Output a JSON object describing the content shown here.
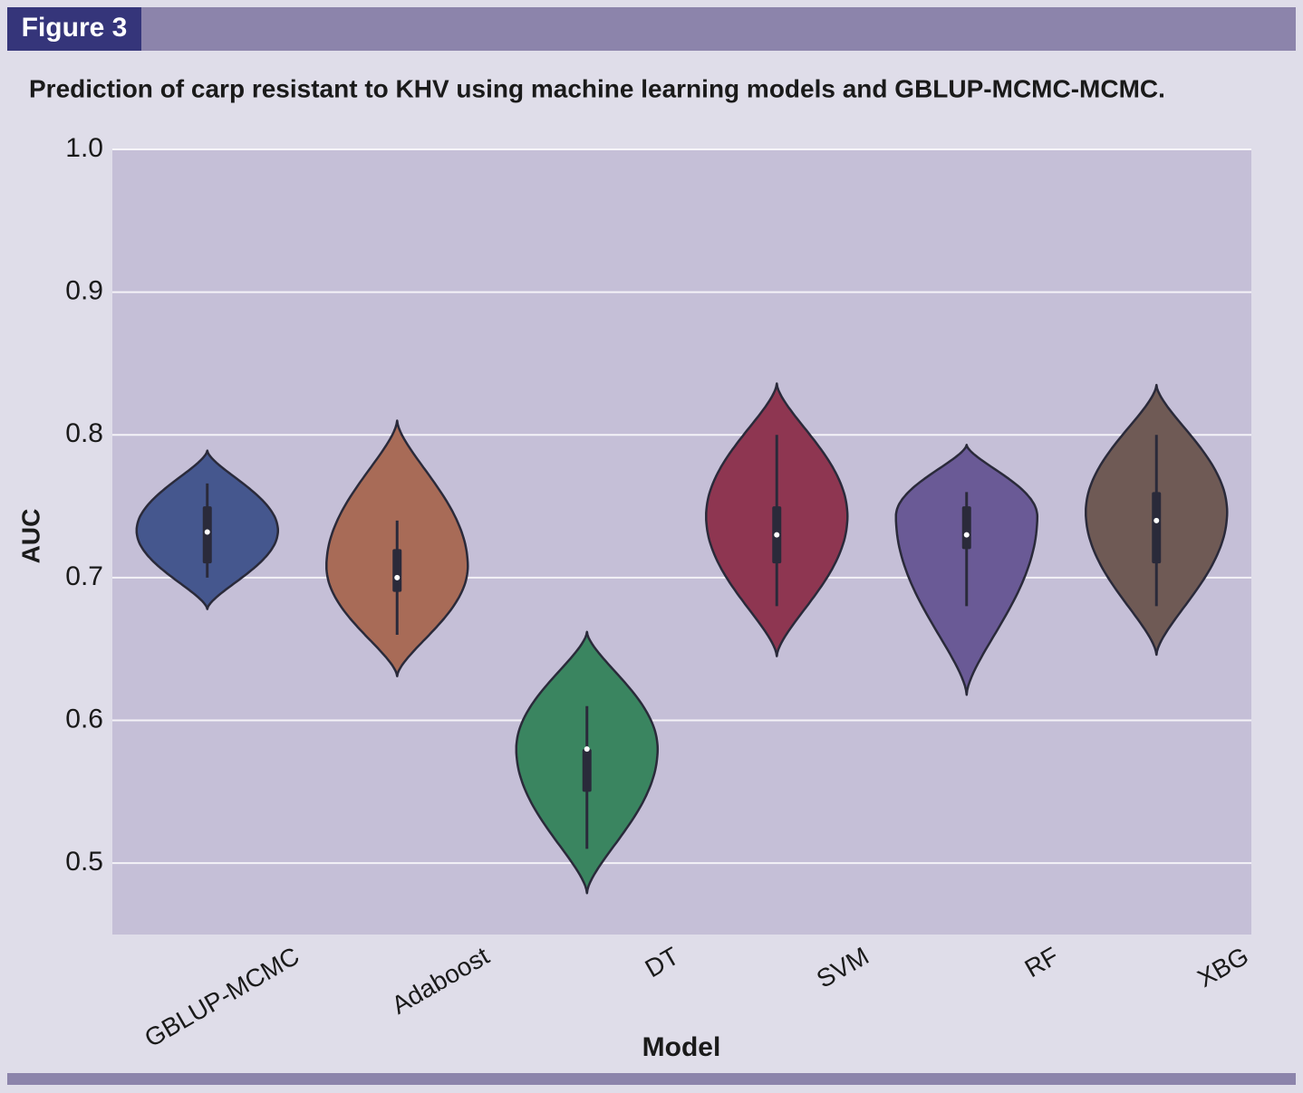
{
  "figure_label": "Figure 3",
  "chart_data": {
    "type": "violin",
    "title": "Prediction of carp resistant to KHV using machine learning models and GBLUP-MCMC-MCMC.",
    "xlabel": "Model",
    "ylabel": "AUC",
    "categories": [
      "GBLUP-MCMC",
      "Adaboost",
      "DT",
      "SVM",
      "RF",
      "XBG"
    ],
    "ylim": [
      0.45,
      1.0
    ],
    "yticks": [
      0.5,
      0.6,
      0.7,
      0.8,
      0.9,
      {
        "value": 1,
        "label": "1.0"
      }
    ],
    "grid": true,
    "violins": [
      {
        "color": "#45578e",
        "kde_min": 0.678,
        "kde_max": 0.789,
        "mode": 0.733,
        "whisker_low": 0.7,
        "q1": 0.71,
        "median": 0.732,
        "q3": 0.75,
        "whisker_high": 0.766
      },
      {
        "color": "#a86b57",
        "kde_min": 0.631,
        "kde_max": 0.81,
        "mode": 0.708,
        "whisker_low": 0.66,
        "q1": 0.69,
        "median": 0.7,
        "q3": 0.72,
        "whisker_high": 0.74
      },
      {
        "color": "#3a8560",
        "kde_min": 0.479,
        "kde_max": 0.662,
        "mode": 0.58,
        "whisker_low": 0.51,
        "q1": 0.55,
        "median": 0.58,
        "q3": 0.58,
        "whisker_high": 0.61
      },
      {
        "color": "#8e3651",
        "kde_min": 0.645,
        "kde_max": 0.836,
        "mode": 0.743,
        "whisker_low": 0.68,
        "q1": 0.71,
        "median": 0.73,
        "q3": 0.75,
        "whisker_high": 0.8
      },
      {
        "color": "#6a5a96",
        "kde_min": 0.618,
        "kde_max": 0.793,
        "mode": 0.743,
        "whisker_low": 0.68,
        "q1": 0.72,
        "median": 0.73,
        "q3": 0.75,
        "whisker_high": 0.76
      },
      {
        "color": "#6f5a55",
        "kde_min": 0.646,
        "kde_max": 0.835,
        "mode": 0.746,
        "whisker_low": 0.68,
        "q1": 0.71,
        "median": 0.74,
        "q3": 0.76,
        "whisker_high": 0.8
      }
    ]
  }
}
